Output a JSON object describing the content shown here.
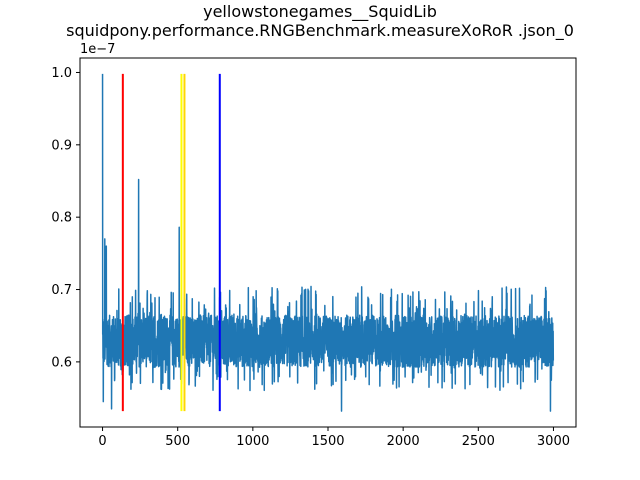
{
  "chart_data": {
    "type": "line",
    "title": "yellowstonegames__SquidLib",
    "subtitle": "squidpony.performance.RNGBenchmark.measureXoRoR .json_0",
    "xlabel": "",
    "ylabel": "",
    "y_offset_label": "1e−7",
    "xlim": [
      -150,
      3150
    ],
    "ylim": [
      0.51,
      1.02
    ],
    "x_ticks": [
      0,
      500,
      1000,
      1500,
      2000,
      2500,
      3000
    ],
    "x_tick_labels": [
      "0",
      "500",
      "1000",
      "1500",
      "2000",
      "2500",
      "3000"
    ],
    "y_ticks": [
      0.6,
      0.7,
      0.8,
      0.9,
      1.0
    ],
    "y_tick_labels": [
      "0.6",
      "0.7",
      "0.8",
      "0.9",
      "1.0"
    ],
    "grid": false,
    "series": [
      {
        "color": "#1f77b4",
        "n_points": 3000,
        "baseline": 0.625,
        "noise_amplitude": 0.045,
        "min": 0.532,
        "max": 0.998,
        "spikes": [
          {
            "x": 0,
            "y": 0.998
          },
          {
            "x": 5,
            "y": 0.545
          },
          {
            "x": 15,
            "y": 0.77
          },
          {
            "x": 25,
            "y": 0.76
          },
          {
            "x": 60,
            "y": 0.535
          },
          {
            "x": 240,
            "y": 0.852
          },
          {
            "x": 510,
            "y": 0.786
          },
          {
            "x": 1590,
            "y": 0.532
          },
          {
            "x": 2980,
            "y": 0.532
          }
        ]
      }
    ],
    "vertical_lines": [
      {
        "x": 135,
        "color": "#ff0000",
        "ymin": 0.532,
        "ymax": 0.998
      },
      {
        "x": 525,
        "color": "#ffff00",
        "ymin": 0.532,
        "ymax": 0.998
      },
      {
        "x": 545,
        "color": "#ffd700",
        "ymin": 0.532,
        "ymax": 0.998
      },
      {
        "x": 780,
        "color": "#0000ff",
        "ymin": 0.532,
        "ymax": 0.998
      }
    ]
  }
}
